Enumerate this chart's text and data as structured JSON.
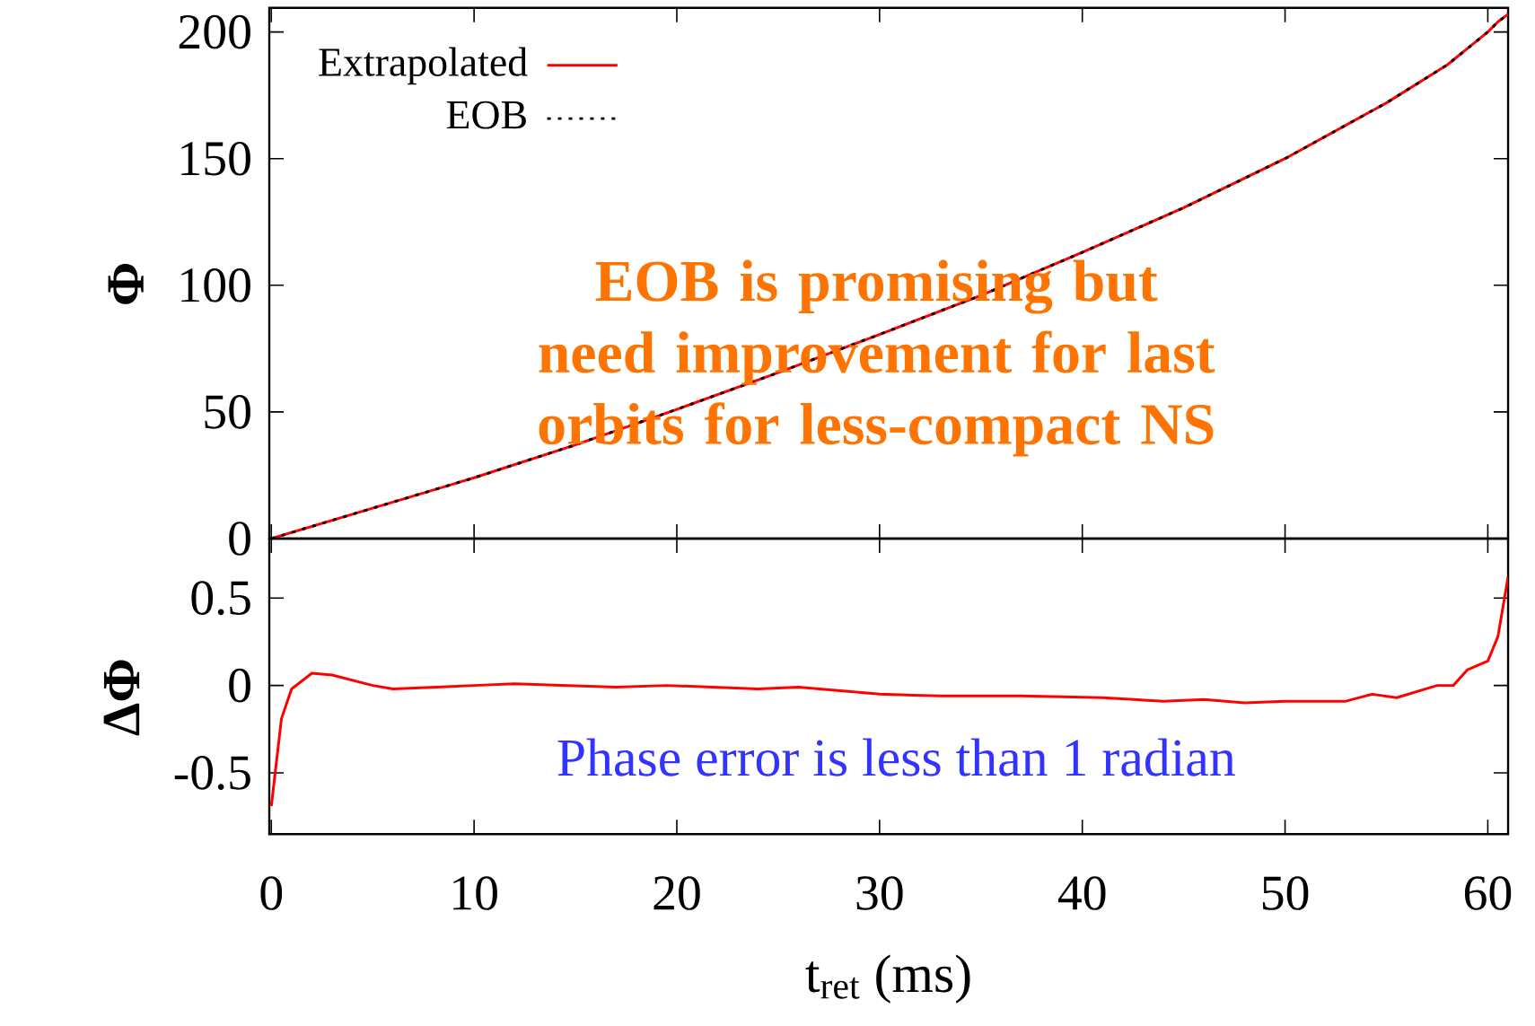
{
  "chart_data": [
    {
      "type": "line",
      "ylabel": "Φ",
      "xlim": [
        -0.1,
        61
      ],
      "ylim": [
        0,
        209.5
      ],
      "xticks": [
        0,
        10,
        20,
        30,
        40,
        50,
        60
      ],
      "yticks": [
        0,
        50,
        100,
        150,
        200
      ],
      "tick_labels": "y",
      "legend": "top left",
      "x": [
        0,
        5,
        10,
        15,
        20,
        25,
        30,
        35,
        40,
        45,
        50,
        55,
        58,
        60,
        60.5,
        61
      ],
      "series": [
        {
          "name": "Extrapolated",
          "color": "#ff0000",
          "line_style": "solid",
          "values": [
            0,
            12,
            24,
            37,
            51,
            65.5,
            80.6,
            96,
            113,
            130.6,
            150,
            172,
            187,
            200,
            204,
            207
          ]
        },
        {
          "name": "EOB",
          "color": "#000000",
          "line_style": "dotted",
          "values": [
            0,
            12,
            24,
            37,
            51,
            65.5,
            80.6,
            96,
            113,
            130.6,
            150,
            172,
            187,
            200,
            204,
            207
          ]
        }
      ],
      "annotations": [
        "EOB is promising but need improvement for last orbits for less-compact NS"
      ]
    },
    {
      "type": "line",
      "ylabel": "ΔΦ",
      "xlabel": "t$_{ret}$ (ms)",
      "xlim": [
        -0.1,
        61
      ],
      "ylim": [
        -0.85,
        0.84
      ],
      "xticks": [
        0,
        10,
        20,
        30,
        40,
        50,
        60
      ],
      "yticks": [
        -0.5,
        0,
        0.5
      ],
      "x": [
        0,
        0.5,
        1,
        2,
        3,
        5,
        6,
        10,
        12,
        17,
        19.5,
        24,
        26,
        30,
        33,
        37,
        41,
        44,
        46,
        48,
        50,
        53,
        54.3,
        55.5,
        57.5,
        58.3,
        59,
        60,
        60.5,
        61
      ],
      "series": [
        {
          "color": "#ff0000",
          "values": [
            -0.69,
            -0.19,
            -0.02,
            0.07,
            0.06,
            0,
            -0.02,
            0,
            0.01,
            -0.01,
            0,
            -0.02,
            -0.01,
            -0.05,
            -0.06,
            -0.06,
            -0.07,
            -0.09,
            -0.08,
            -0.1,
            -0.09,
            -0.09,
            -0.05,
            -0.07,
            0,
            0,
            0.09,
            0.14,
            0.28,
            0.62
          ]
        }
      ],
      "annotations": [
        "Phase error is less than 1 radian"
      ]
    }
  ]
}
